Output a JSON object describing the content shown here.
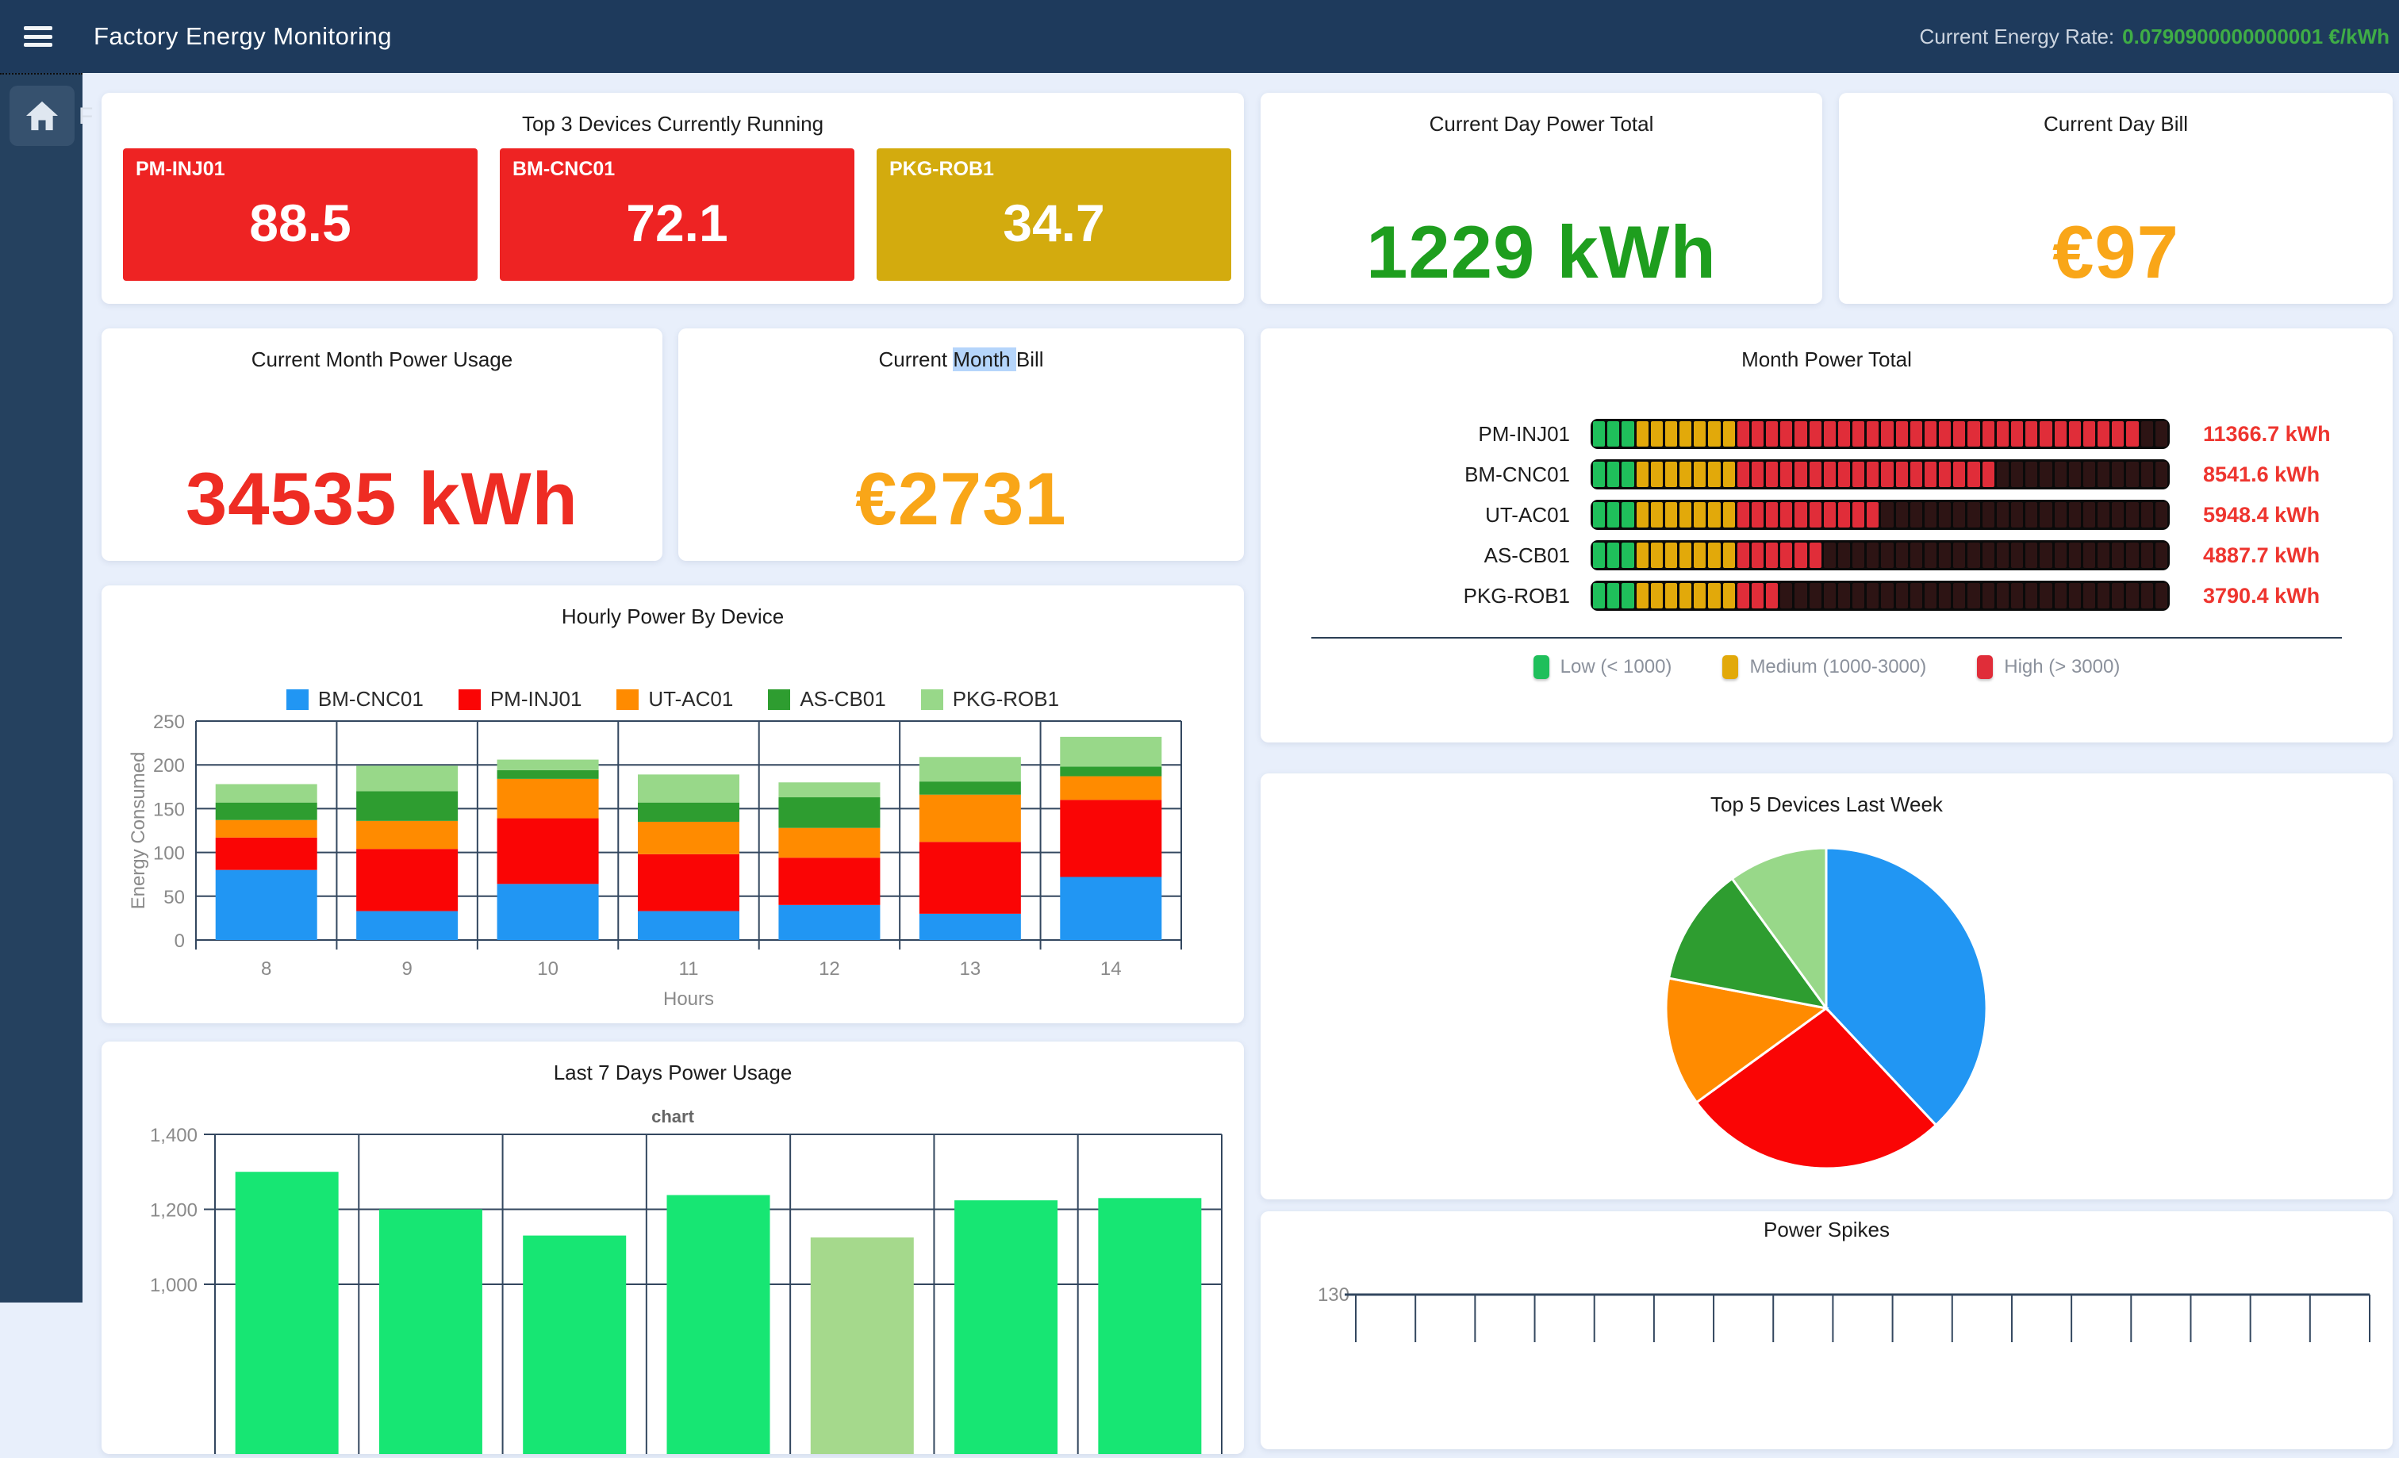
{
  "navbar": {
    "title": "Factory Energy Monitoring",
    "rate_label": "Current Energy Rate:",
    "rate_value": "0.0790900000000001",
    "rate_unit": "€/kWh"
  },
  "sidebar": {
    "clipped_label": "F"
  },
  "cards": {
    "top3": {
      "title": "Top 3 Devices Currently Running",
      "tiles": [
        {
          "device": "PM-INJ01",
          "value": "88.5",
          "color": "#ee2323"
        },
        {
          "device": "BM-CNC01",
          "value": "72.1",
          "color": "#ee2323"
        },
        {
          "device": "PKG-ROB1",
          "value": "34.7",
          "color": "#d3ab0e"
        }
      ]
    },
    "day_total": {
      "title": "Current Day Power Total",
      "value": "1229 kWh",
      "color": "#1e9e1e"
    },
    "day_bill": {
      "title": "Current Day Bill",
      "value": "€97",
      "color": "#f9a618"
    },
    "month_usage": {
      "title": "Current Month Power Usage",
      "value": "34535 kWh",
      "color": "#ee2c23"
    },
    "month_bill": {
      "title_pre": "Current ",
      "title_selected": "Month ",
      "title_post": "Bill",
      "value": "€2731",
      "color": "#f9a618"
    }
  },
  "chart_data": [
    {
      "id": "month-power-total",
      "type": "segmented-bar",
      "title": "Month Power Total",
      "categories": [
        "PM-INJ01",
        "BM-CNC01",
        "UT-AC01",
        "AS-CB01",
        "PKG-ROB1"
      ],
      "values": [
        11366.7,
        8541.6,
        5948.4,
        4887.7,
        3790.4
      ],
      "value_labels": [
        "11366.7 kWh",
        "8541.6 kWh",
        "5948.4 kWh",
        "4887.7 kWh",
        "3790.4 kWh"
      ],
      "value_color": "#ee352f",
      "segments_per_bar": 40,
      "kwh_per_segment": 300,
      "axis_max": 12000,
      "unlit_color": "#2d1414",
      "zones": [
        {
          "label": "Low (< 1000)",
          "max": 1000,
          "color": "#1fbf5b"
        },
        {
          "label": "Medium (1000-3000)",
          "max": 3000,
          "color": "#e2a90a"
        },
        {
          "label": "High (> 3000)",
          "max": 12000,
          "color": "#e02d39"
        }
      ]
    },
    {
      "id": "hourly-power-by-device",
      "type": "bar-stacked",
      "title": "Hourly Power By Device",
      "xlabel": "Hours",
      "ylabel": "Energy Consumed",
      "categories": [
        8,
        9,
        10,
        11,
        12,
        13,
        14
      ],
      "ylim": [
        0,
        250
      ],
      "yticks": [
        0,
        50,
        100,
        150,
        200,
        250
      ],
      "grid": true,
      "legend_position": "top",
      "series": [
        {
          "name": "BM-CNC01",
          "color": "#2196f3",
          "values": [
            80,
            33,
            64,
            33,
            40,
            30,
            72
          ]
        },
        {
          "name": "PM-INJ01",
          "color": "#fa0505",
          "values": [
            37,
            71,
            75,
            65,
            54,
            82,
            88
          ]
        },
        {
          "name": "UT-AC01",
          "color": "#ff8b00",
          "values": [
            20,
            32,
            45,
            37,
            34,
            54,
            27
          ]
        },
        {
          "name": "AS-CB01",
          "color": "#2e9d30",
          "values": [
            20,
            34,
            10,
            22,
            35,
            15,
            11
          ]
        },
        {
          "name": "PKG-ROB1",
          "color": "#98d889",
          "values": [
            21,
            29,
            12,
            32,
            17,
            28,
            34
          ]
        }
      ]
    },
    {
      "id": "top5-devices-last-week",
      "type": "pie",
      "title": "Top 5 Devices Last Week",
      "start_angle_deg": 0,
      "direction": "clockwise",
      "slices": [
        {
          "name": "BM-CNC01",
          "color": "#2196f3",
          "percent": 38
        },
        {
          "name": "PM-INJ01",
          "color": "#fa0505",
          "percent": 27
        },
        {
          "name": "UT-AC01",
          "color": "#ff8b00",
          "percent": 13
        },
        {
          "name": "AS-CB01",
          "color": "#2e9d30",
          "percent": 12
        },
        {
          "name": "PKG-ROB1",
          "color": "#98d889",
          "percent": 10
        }
      ]
    },
    {
      "id": "last-7-days-power-usage",
      "type": "bar",
      "title": "Last 7 Days Power Usage",
      "subtitle": "chart",
      "values": [
        1300,
        1200,
        1130,
        1238,
        1125,
        1224,
        1230
      ],
      "bar_color": "#17e673",
      "highlight_index": 4,
      "highlight_color": "#a5d98c",
      "yticks_visible": [
        "1,400",
        "1,200",
        "1,000"
      ],
      "ylim_visible": [
        1000,
        1400
      ],
      "grid": true
    },
    {
      "id": "power-spikes",
      "type": "line",
      "title": "Power Spikes",
      "ytick_visible": "130"
    }
  ]
}
